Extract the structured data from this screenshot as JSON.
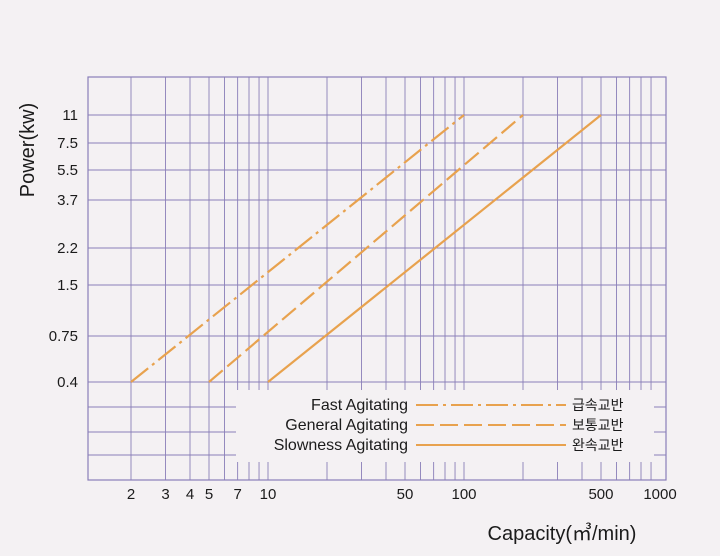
{
  "chart_data": {
    "type": "line",
    "xlabel": "Capacity(㎥/min)",
    "ylabel": "Power(kw)",
    "x_scale": "log",
    "xlim": [
      1,
      1000
    ],
    "x_ticks": [
      2,
      3,
      4,
      5,
      7,
      10,
      50,
      100,
      500,
      1000
    ],
    "x_tick_labels": [
      "2",
      "3",
      "4",
      "5",
      "7",
      "10",
      "50",
      "100",
      "500",
      "1000"
    ],
    "y_ticks": [
      "0.4",
      "0.75",
      "1.5",
      "2.2",
      "3.7",
      "5.5",
      "7.5",
      "11"
    ],
    "grid": true,
    "legend_position": "bottom-right",
    "series": [
      {
        "name": "Fast Agitating",
        "name_kr": "급속교반",
        "style": "dash-dot",
        "color": "#e8a24e",
        "points": [
          {
            "x": 2,
            "y": "0.4"
          },
          {
            "x": 100,
            "y": "11"
          }
        ]
      },
      {
        "name": "General Agitating",
        "name_kr": "보통교반",
        "style": "dashed",
        "color": "#e8a24e",
        "points": [
          {
            "x": 5,
            "y": "0.4"
          },
          {
            "x": 200,
            "y": "11"
          }
        ]
      },
      {
        "name": "Slowness Agitating",
        "name_kr": "완속교반",
        "style": "solid",
        "color": "#e8a24e",
        "points": [
          {
            "x": 10,
            "y": "0.4"
          },
          {
            "x": 500,
            "y": "11"
          }
        ]
      }
    ],
    "colors": {
      "grid": "#8a7fb8",
      "line": "#e8a24e",
      "legend_dash": "#e0a0a0",
      "background": "#f4f1f3"
    }
  }
}
